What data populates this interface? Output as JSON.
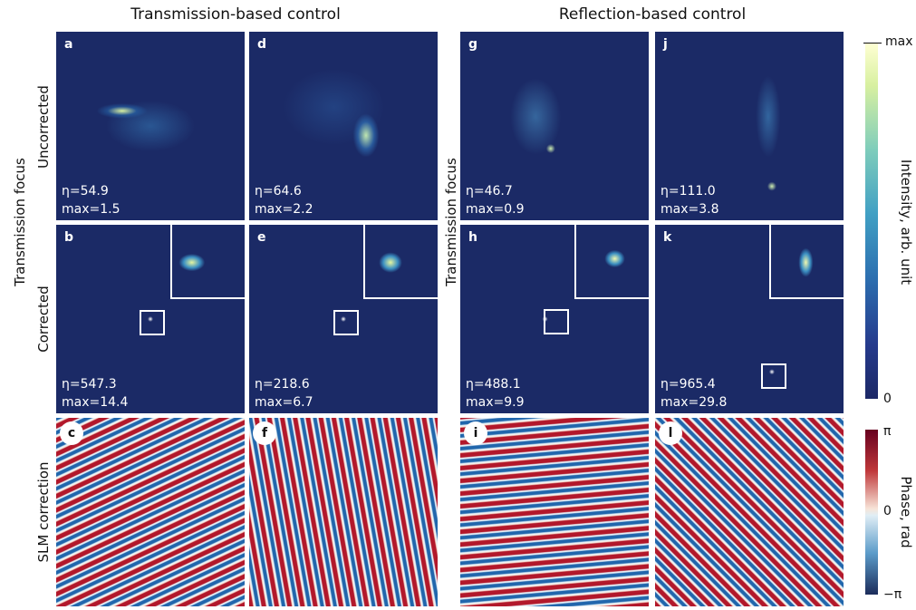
{
  "column_titles": [
    "Transmission-based control",
    "Reflection-based control"
  ],
  "row_labels": {
    "group_left": "Transmission focus",
    "group_right": "Transmission focus",
    "uncorrected": "Uncorrected",
    "corrected": "Corrected",
    "slm": "SLM correction"
  },
  "panels": [
    {
      "letter": "a",
      "eta": "η=54.9",
      "max": "max=1.5"
    },
    {
      "letter": "b",
      "eta": "η=547.3",
      "max": "max=14.4"
    },
    {
      "letter": "c"
    },
    {
      "letter": "d",
      "eta": "η=64.6",
      "max": "max=2.2"
    },
    {
      "letter": "e",
      "eta": "η=218.6",
      "max": "max=6.7"
    },
    {
      "letter": "f"
    },
    {
      "letter": "g",
      "eta": "η=46.7",
      "max": "max=0.9"
    },
    {
      "letter": "h",
      "eta": "η=488.1",
      "max": "max=9.9"
    },
    {
      "letter": "i"
    },
    {
      "letter": "j",
      "eta": "η=111.0",
      "max": "max=3.8"
    },
    {
      "letter": "k",
      "eta": "η=965.4",
      "max": "max=29.8"
    },
    {
      "letter": "l"
    }
  ],
  "intensity_colorbar": {
    "title": "Intensity, arb. unit",
    "ticks": [
      "max",
      "0"
    ]
  },
  "phase_colorbar": {
    "title": "Phase, rad",
    "ticks": [
      "π",
      "0",
      "−π"
    ]
  }
}
